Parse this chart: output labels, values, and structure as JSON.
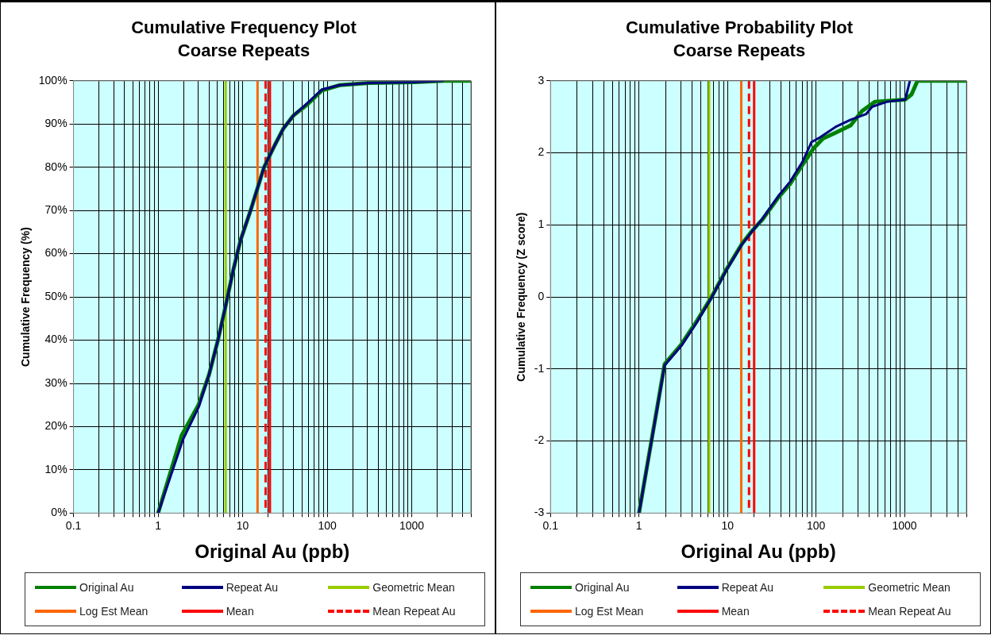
{
  "chart_data": [
    {
      "type": "line",
      "title": "Cumulative Frequency Plot",
      "subtitle": "Coarse Repeats",
      "xlabel": "Original Au (ppb)",
      "ylabel": "Cumulative Frequency (%)",
      "log": "x",
      "grid": true,
      "legend": "bottom",
      "line_style": "solid",
      "marker": "none",
      "xlim": [
        0.1,
        5000
      ],
      "xticks": [
        0.1,
        {
          "value": 0.2,
          "label": null
        },
        {
          "value": 0.3,
          "label": null
        },
        {
          "value": 0.4,
          "label": null
        },
        {
          "value": 0.5,
          "label": null
        },
        {
          "value": 0.6,
          "label": null
        },
        {
          "value": 0.7,
          "label": null
        },
        {
          "value": 0.8,
          "label": null
        },
        {
          "value": 0.9,
          "label": null
        },
        1,
        {
          "value": 2,
          "label": null
        },
        {
          "value": 3,
          "label": null
        },
        {
          "value": 4,
          "label": null
        },
        {
          "value": 5,
          "label": null
        },
        {
          "value": 6,
          "label": null
        },
        {
          "value": 7,
          "label": null
        },
        {
          "value": 8,
          "label": null
        },
        {
          "value": 9,
          "label": null
        },
        10,
        {
          "value": 20,
          "label": null
        },
        {
          "value": 30,
          "label": null
        },
        {
          "value": 40,
          "label": null
        },
        {
          "value": 50,
          "label": null
        },
        {
          "value": 60,
          "label": null
        },
        {
          "value": 70,
          "label": null
        },
        {
          "value": 80,
          "label": null
        },
        {
          "value": 90,
          "label": null
        },
        100,
        {
          "value": 200,
          "label": null
        },
        {
          "value": 300,
          "label": null
        },
        {
          "value": 400,
          "label": null
        },
        {
          "value": 500,
          "label": null
        },
        {
          "value": 600,
          "label": null
        },
        {
          "value": 700,
          "label": null
        },
        {
          "value": 800,
          "label": null
        },
        {
          "value": 900,
          "label": null
        },
        1000,
        {
          "value": 2000,
          "label": null
        },
        {
          "value": 3000,
          "label": null
        },
        {
          "value": 4000,
          "label": null
        },
        {
          "value": 5000,
          "label": null
        }
      ],
      "ylim": [
        0,
        100
      ],
      "yticks": [
        {
          "value": 0,
          "label": "0%"
        },
        {
          "value": 10,
          "label": "10%"
        },
        {
          "value": 20,
          "label": "20%"
        },
        {
          "value": 30,
          "label": "30%"
        },
        {
          "value": 40,
          "label": "40%"
        },
        {
          "value": 50,
          "label": "50%"
        },
        {
          "value": 60,
          "label": "60%"
        },
        {
          "value": 70,
          "label": "70%"
        },
        {
          "value": 80,
          "label": "80%"
        },
        {
          "value": 90,
          "label": "90%"
        },
        {
          "value": 100,
          "label": "100%"
        }
      ],
      "series": [
        {
          "name": "Original Au",
          "color": "#008000",
          "x": [
            1,
            1.9,
            3.0,
            4.0,
            5.1,
            6.3,
            7.7,
            9.4,
            12.4,
            17.9,
            23.8,
            30.4,
            40,
            58,
            87,
            141,
            316,
            1070,
            2400,
            5000
          ],
          "values": [
            0,
            18,
            25,
            32,
            40,
            48,
            56,
            63,
            70,
            80,
            85,
            89,
            92,
            94.5,
            97.8,
            99,
            99.5,
            99.7,
            100,
            100
          ]
        },
        {
          "name": "Repeat Au",
          "color": "#000080",
          "x": [
            1,
            1.97,
            3.03,
            4.0,
            5.1,
            6.3,
            7.7,
            9.4,
            12.4,
            17.9,
            23.8,
            30.4,
            40,
            58,
            87,
            141,
            316,
            1070,
            2400
          ],
          "values": [
            0,
            17,
            24.6,
            32,
            40,
            48,
            56,
            63,
            70,
            80,
            85,
            89,
            92,
            94.8,
            98,
            99,
            99.5,
            99.7,
            100
          ]
        }
      ],
      "ref_lines": [
        {
          "axis": "x",
          "value": 6.3,
          "label": "Geometric Mean",
          "color": "#99cc00",
          "line_style": "solid"
        },
        {
          "axis": "x",
          "value": 15,
          "label": "Log Est Mean",
          "color": "#ff6600",
          "line_style": "solid"
        },
        {
          "axis": "x",
          "value": 21,
          "label": "Mean",
          "color": "#ff0000",
          "line_style": "solid"
        },
        {
          "axis": "x",
          "value": 18.7,
          "label": "Mean Repeat Au",
          "color": "#ff0000",
          "line_style": "dashed"
        }
      ]
    },
    {
      "type": "line",
      "title": "Cumulative Probability Plot",
      "subtitle": "Coarse Repeats",
      "xlabel": "Original Au (ppb)",
      "ylabel": "Cumulative Frequency (Z score)",
      "log": "x",
      "grid": true,
      "legend": "bottom",
      "line_style": "solid",
      "marker": "none",
      "xlim": [
        0.1,
        5000
      ],
      "xticks": [
        0.1,
        {
          "value": 0.2,
          "label": null
        },
        {
          "value": 0.3,
          "label": null
        },
        {
          "value": 0.4,
          "label": null
        },
        {
          "value": 0.5,
          "label": null
        },
        {
          "value": 0.6,
          "label": null
        },
        {
          "value": 0.7,
          "label": null
        },
        {
          "value": 0.8,
          "label": null
        },
        {
          "value": 0.9,
          "label": null
        },
        1,
        {
          "value": 2,
          "label": null
        },
        {
          "value": 3,
          "label": null
        },
        {
          "value": 4,
          "label": null
        },
        {
          "value": 5,
          "label": null
        },
        {
          "value": 6,
          "label": null
        },
        {
          "value": 7,
          "label": null
        },
        {
          "value": 8,
          "label": null
        },
        {
          "value": 9,
          "label": null
        },
        10,
        {
          "value": 20,
          "label": null
        },
        {
          "value": 30,
          "label": null
        },
        {
          "value": 40,
          "label": null
        },
        {
          "value": 50,
          "label": null
        },
        {
          "value": 60,
          "label": null
        },
        {
          "value": 70,
          "label": null
        },
        {
          "value": 80,
          "label": null
        },
        {
          "value": 90,
          "label": null
        },
        100,
        {
          "value": 200,
          "label": null
        },
        {
          "value": 300,
          "label": null
        },
        {
          "value": 400,
          "label": null
        },
        {
          "value": 500,
          "label": null
        },
        {
          "value": 600,
          "label": null
        },
        {
          "value": 700,
          "label": null
        },
        {
          "value": 800,
          "label": null
        },
        {
          "value": 900,
          "label": null
        },
        1000,
        {
          "value": 2000,
          "label": null
        },
        {
          "value": 3000,
          "label": null
        },
        {
          "value": 4000,
          "label": null
        },
        {
          "value": 5000,
          "label": null
        }
      ],
      "ylim": [
        -3,
        3
      ],
      "yticks": [
        -3,
        -2,
        -1,
        0,
        1,
        2,
        3
      ],
      "series": [
        {
          "name": "Original Au",
          "color": "#008000",
          "x": [
            1,
            1.95,
            3.0,
            4.47,
            6.6,
            9.8,
            14.6,
            18.4,
            25,
            37.5,
            51,
            70,
            95,
            120,
            166,
            246,
            330,
            465,
            1020,
            1200,
            1400,
            5000
          ],
          "values": [
            -3,
            -0.93,
            -0.66,
            -0.34,
            0,
            0.39,
            0.74,
            0.9,
            1.08,
            1.38,
            1.57,
            1.83,
            2.07,
            2.2,
            2.28,
            2.38,
            2.58,
            2.71,
            2.74,
            2.81,
            3,
            3
          ]
        },
        {
          "name": "Repeat Au",
          "color": "#000080",
          "x": [
            1,
            1.95,
            3.0,
            4.47,
            6.6,
            9.8,
            14.6,
            18.4,
            25,
            37.5,
            51,
            70,
            89,
            113,
            166,
            246,
            370,
            430,
            635,
            1020,
            1150
          ],
          "values": [
            -3,
            -0.95,
            -0.68,
            -0.36,
            -0.01,
            0.38,
            0.73,
            0.89,
            1.09,
            1.4,
            1.6,
            1.87,
            2.15,
            2.22,
            2.36,
            2.46,
            2.54,
            2.64,
            2.71,
            2.74,
            3
          ]
        }
      ],
      "ref_lines": [
        {
          "axis": "x",
          "value": 6.2,
          "label": "Geometric Mean",
          "color": "#99cc00",
          "line_style": "solid"
        },
        {
          "axis": "x",
          "value": 14.3,
          "label": "Log Est Mean",
          "color": "#ff6600",
          "line_style": "solid"
        },
        {
          "axis": "x",
          "value": 20,
          "label": "Mean",
          "color": "#ff0000",
          "line_style": "solid"
        },
        {
          "axis": "x",
          "value": 17.5,
          "label": "Mean Repeat Au",
          "color": "#ff0000",
          "line_style": "dashed"
        }
      ]
    }
  ]
}
